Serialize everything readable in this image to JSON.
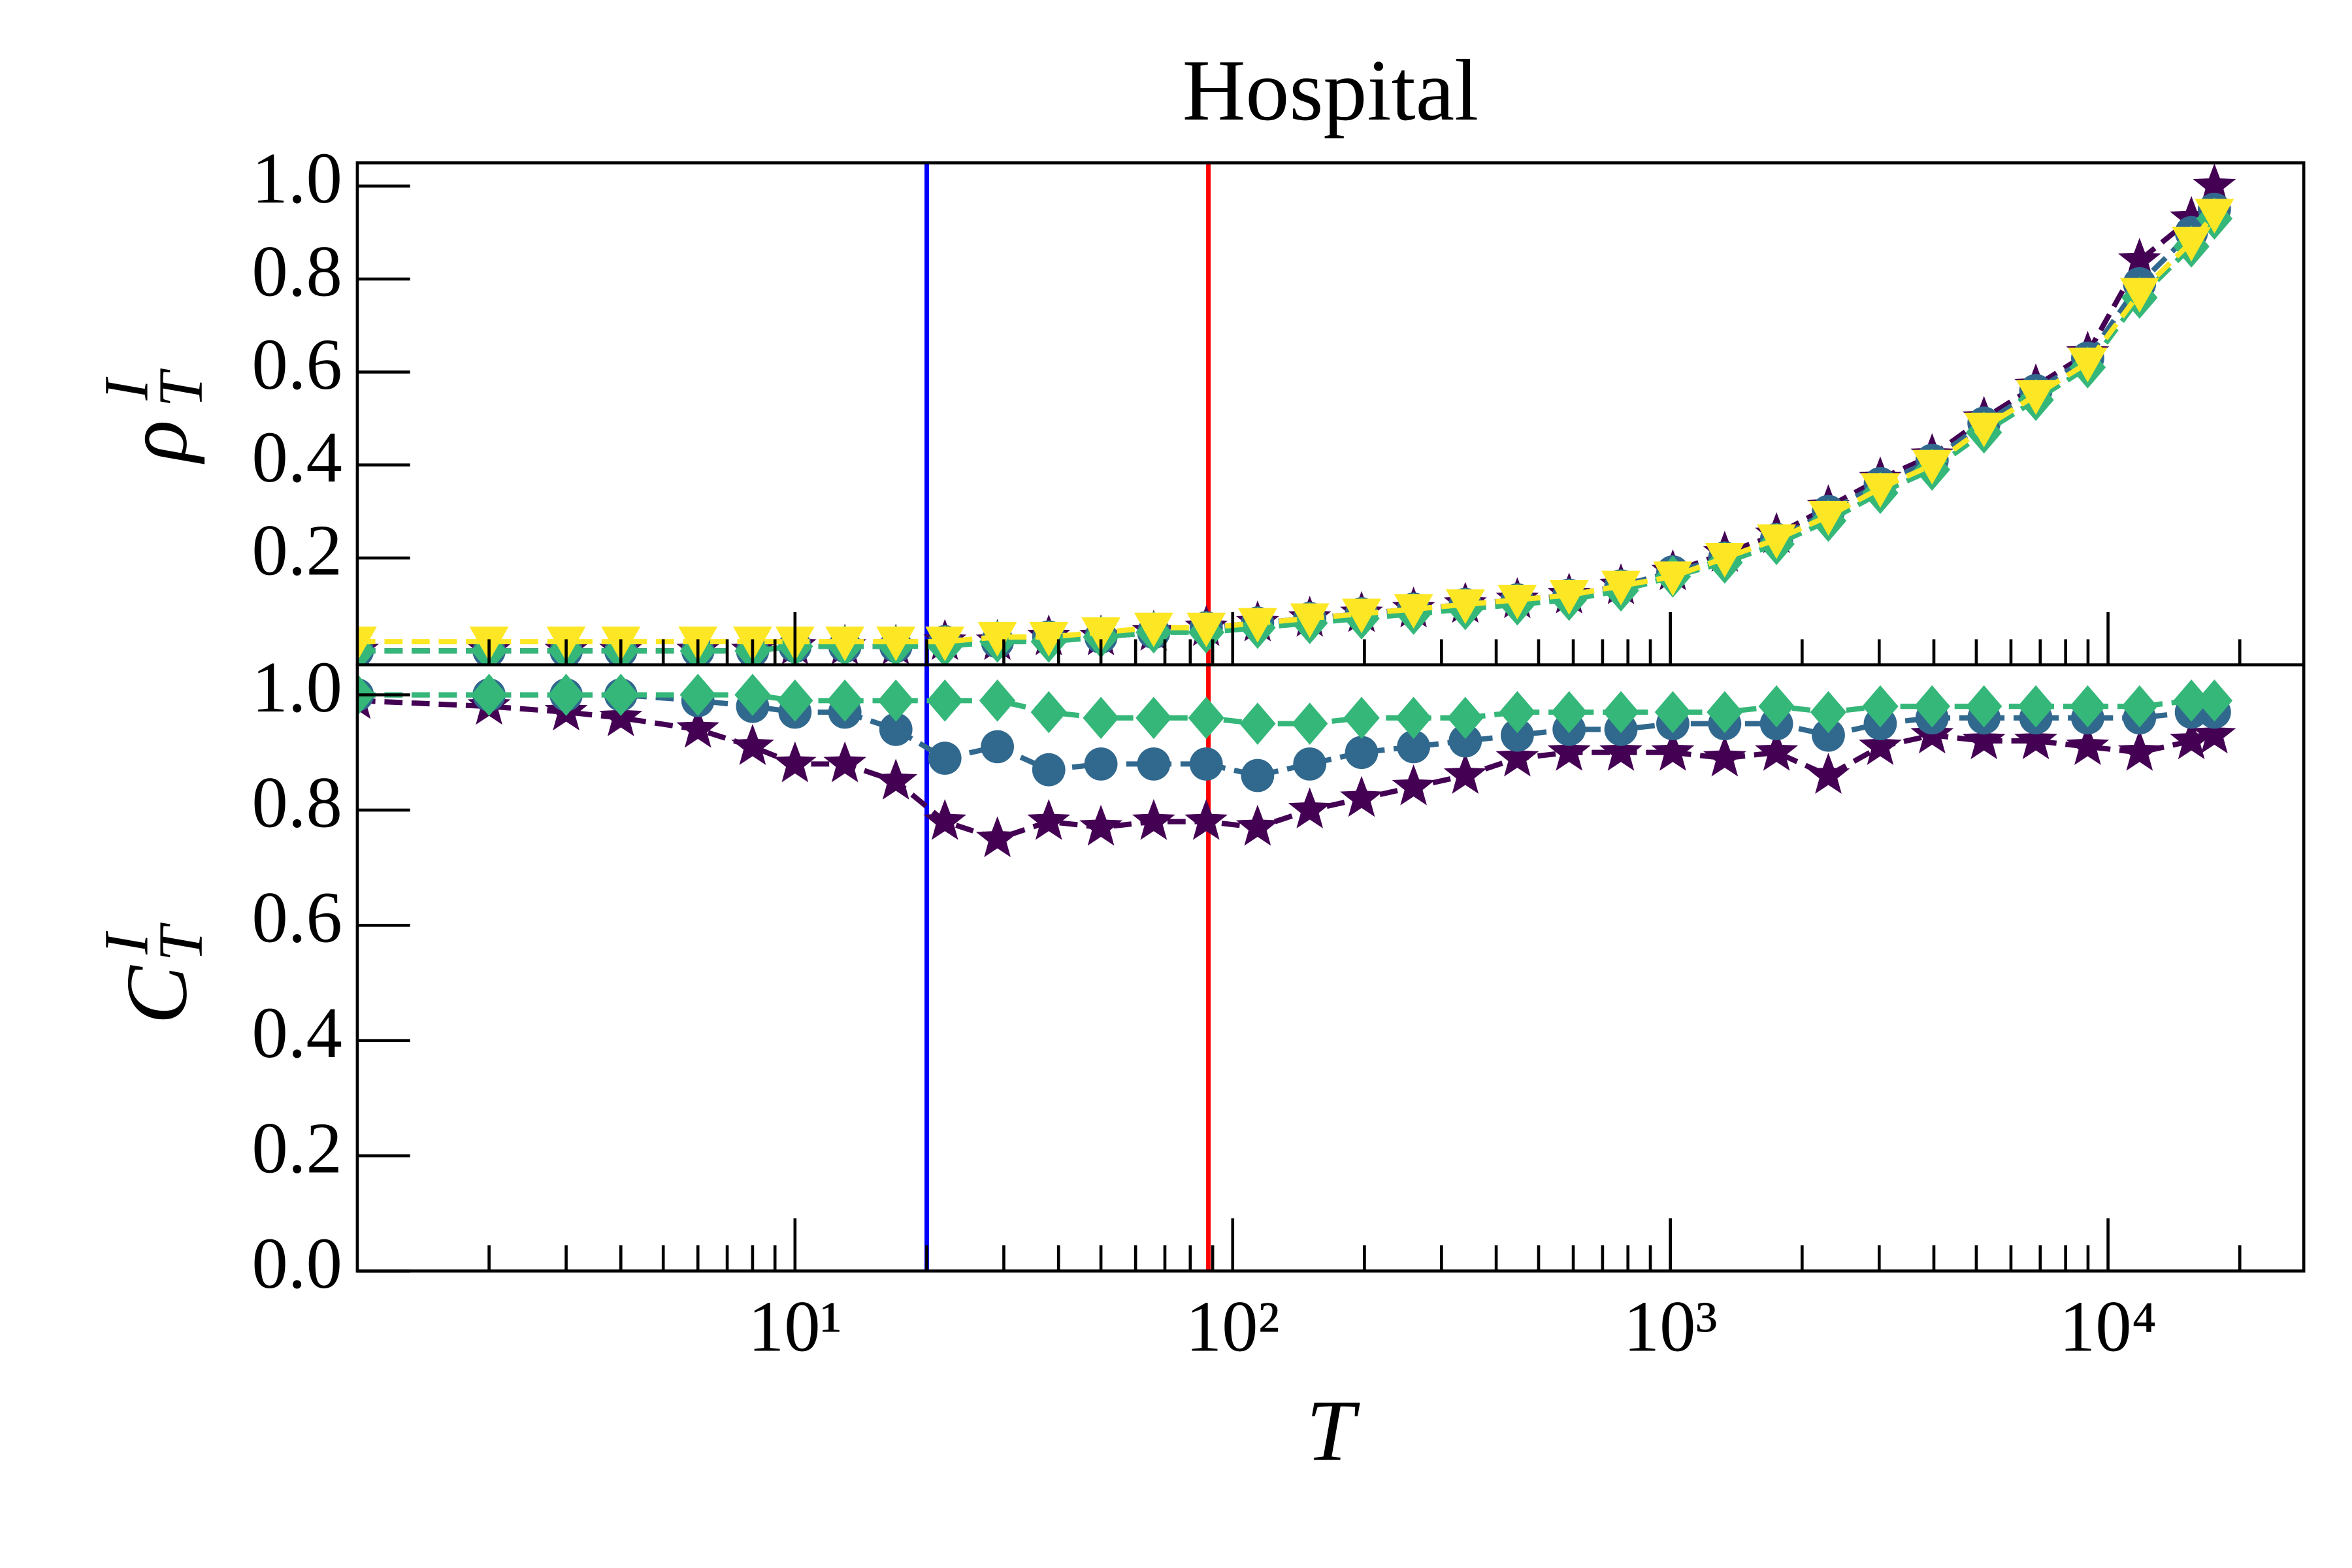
{
  "chart_data": [
    {
      "type": "line",
      "title": "Hospital",
      "ylabel": "ρ",
      "ylabel_sub": "T",
      "ylabel_sup": "I",
      "xscale": "log",
      "xlim": [
        1,
        28000
      ],
      "ylim": [
        -0.03,
        1.05
      ],
      "xticks": [
        10,
        100,
        1000,
        10000
      ],
      "xticklabels": false,
      "xminorticks": [
        2,
        3,
        4,
        5,
        6,
        7,
        8,
        9,
        20,
        30,
        40,
        50,
        60,
        70,
        80,
        90,
        200,
        300,
        400,
        500,
        600,
        700,
        800,
        900,
        2000,
        3000,
        4000,
        5000,
        6000,
        7000,
        8000,
        9000,
        20000
      ],
      "yticks": [
        0.2,
        0.4,
        0.6,
        0.8,
        {
          "value": 1,
          "label": "1.0"
        }
      ],
      "vlines": [
        20,
        88
      ],
      "vline_colors": [
        "#0000ff",
        "#ff0000"
      ],
      "x": [
        1,
        2,
        3,
        4,
        6,
        8,
        10,
        13,
        17,
        22,
        29,
        38,
        50,
        66,
        87,
        114,
        150,
        197,
        259,
        340,
        447,
        587,
        771,
        1013,
        1331,
        1748,
        2296,
        3017,
        3963,
        5206,
        6839,
        8984,
        11802,
        15503,
        17500
      ],
      "series": [
        {
          "color": "#440154",
          "marker": "star",
          "values": [
            0,
            0,
            0,
            0,
            0,
            0,
            0.01,
            0.01,
            0.01,
            0.02,
            0.02,
            0.03,
            0.03,
            0.04,
            0.05,
            0.06,
            0.07,
            0.08,
            0.09,
            0.1,
            0.11,
            0.12,
            0.14,
            0.17,
            0.21,
            0.25,
            0.31,
            0.37,
            0.42,
            0.5,
            0.57,
            0.64,
            0.84,
            0.93,
            1.0
          ]
        },
        {
          "color": "#31688e",
          "marker": "circle",
          "values": [
            0,
            0,
            0,
            0,
            0,
            0,
            0.01,
            0.01,
            0.01,
            0.02,
            0.02,
            0.03,
            0.03,
            0.04,
            0.05,
            0.06,
            0.07,
            0.08,
            0.09,
            0.1,
            0.11,
            0.12,
            0.14,
            0.17,
            0.2,
            0.24,
            0.3,
            0.36,
            0.41,
            0.49,
            0.56,
            0.63,
            0.79,
            0.9,
            0.95
          ]
        },
        {
          "color": "#35b779",
          "marker": "diamond",
          "values": [
            0,
            0,
            0,
            0,
            0,
            0,
            0.01,
            0.01,
            0.01,
            0.01,
            0.02,
            0.02,
            0.03,
            0.04,
            0.04,
            0.05,
            0.06,
            0.07,
            0.08,
            0.09,
            0.1,
            0.11,
            0.13,
            0.16,
            0.19,
            0.23,
            0.28,
            0.34,
            0.39,
            0.47,
            0.54,
            0.61,
            0.76,
            0.87,
            0.93
          ]
        },
        {
          "color": "#fde725",
          "marker": "triangle-down",
          "values": [
            0.02,
            0.02,
            0.02,
            0.02,
            0.02,
            0.02,
            0.02,
            0.02,
            0.02,
            0.02,
            0.03,
            0.03,
            0.04,
            0.05,
            0.05,
            0.06,
            0.07,
            0.08,
            0.09,
            0.1,
            0.11,
            0.12,
            0.14,
            0.16,
            0.2,
            0.24,
            0.29,
            0.35,
            0.4,
            0.48,
            0.55,
            0.62,
            0.77,
            0.88,
            0.94
          ]
        }
      ]
    },
    {
      "type": "line",
      "xlabel": "T",
      "ylabel": "C",
      "ylabel_sub": "T",
      "ylabel_sup": "I",
      "xscale": "log",
      "xlim": [
        1,
        28000
      ],
      "ylim": [
        0,
        1.052
      ],
      "xticks": [
        {
          "value": 10,
          "label": "10¹"
        },
        {
          "value": 100,
          "label": "10²"
        },
        {
          "value": 1000,
          "label": "10³"
        },
        {
          "value": 10000,
          "label": "10⁴"
        }
      ],
      "xticklabels": true,
      "xminorticks": [
        2,
        3,
        4,
        5,
        6,
        7,
        8,
        9,
        20,
        30,
        40,
        50,
        60,
        70,
        80,
        90,
        200,
        300,
        400,
        500,
        600,
        700,
        800,
        900,
        2000,
        3000,
        4000,
        5000,
        6000,
        7000,
        8000,
        9000,
        20000
      ],
      "yticks": [
        {
          "value": 0,
          "label": "0.0"
        },
        0.2,
        0.4,
        0.6,
        0.8,
        {
          "value": 1,
          "label": "1.0"
        }
      ],
      "vlines": [
        20,
        88
      ],
      "vline_colors": [
        "#0000ff",
        "#ff0000"
      ],
      "x": [
        1,
        2,
        3,
        4,
        6,
        8,
        10,
        13,
        17,
        22,
        29,
        38,
        50,
        66,
        87,
        114,
        150,
        197,
        259,
        340,
        447,
        587,
        771,
        1013,
        1331,
        1748,
        2296,
        3017,
        3963,
        5206,
        6839,
        8984,
        11802,
        15503,
        17500
      ],
      "series": [
        {
          "color": "#440154",
          "marker": "star",
          "values": [
            0.99,
            0.98,
            0.97,
            0.96,
            0.94,
            0.91,
            0.88,
            0.88,
            0.85,
            0.78,
            0.75,
            0.78,
            0.77,
            0.78,
            0.78,
            0.77,
            0.8,
            0.82,
            0.84,
            0.86,
            0.89,
            0.9,
            0.9,
            0.9,
            0.89,
            0.9,
            0.86,
            0.91,
            0.93,
            0.92,
            0.92,
            0.91,
            0.9,
            0.92,
            0.93
          ]
        },
        {
          "color": "#31688e",
          "marker": "circle",
          "values": [
            1,
            1,
            1,
            1,
            0.99,
            0.98,
            0.97,
            0.97,
            0.94,
            0.89,
            0.91,
            0.87,
            0.88,
            0.88,
            0.88,
            0.86,
            0.88,
            0.9,
            0.91,
            0.92,
            0.93,
            0.94,
            0.94,
            0.95,
            0.95,
            0.95,
            0.93,
            0.95,
            0.96,
            0.96,
            0.96,
            0.96,
            0.96,
            0.97,
            0.97
          ]
        },
        {
          "color": "#35b779",
          "marker": "diamond",
          "values": [
            1,
            1,
            1,
            1,
            1,
            1,
            0.99,
            0.99,
            0.99,
            0.99,
            0.99,
            0.97,
            0.96,
            0.96,
            0.96,
            0.95,
            0.95,
            0.96,
            0.96,
            0.96,
            0.97,
            0.97,
            0.97,
            0.97,
            0.97,
            0.98,
            0.97,
            0.98,
            0.98,
            0.98,
            0.98,
            0.98,
            0.98,
            0.99,
            0.99
          ]
        }
      ]
    }
  ]
}
